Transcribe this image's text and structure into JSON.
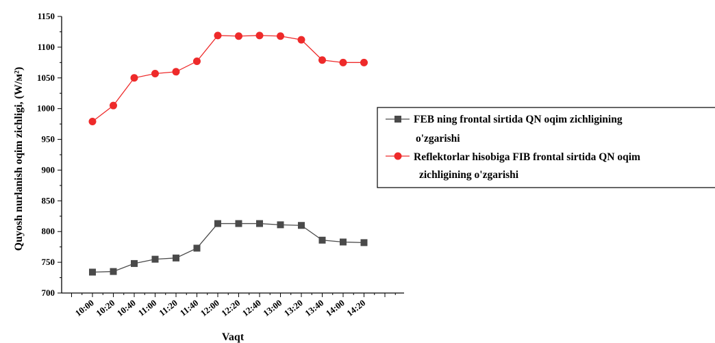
{
  "chart_data": {
    "type": "line",
    "xlabel": "Vaqt",
    "ylabel": "Quyosh nurlanish oqim zichligi, (W/м²)",
    "ylim": [
      700,
      1150
    ],
    "yticks": [
      "700",
      "750",
      "800",
      "850",
      "900",
      "950",
      "1000",
      "1050",
      "1100",
      "1150"
    ],
    "categories": [
      "10:00",
      "10:20",
      "10:40",
      "11:00",
      "11:20",
      "11:40",
      "12:00",
      "12:20",
      "12:40",
      "13:00",
      "13:20",
      "13:40",
      "14:00",
      "14:20"
    ],
    "series": [
      {
        "name_line1": "FEB ning frontal sirtida QN oqim zichligining",
        "name_line2": "o'zgarishi",
        "color": "#4a4a4a",
        "marker": "square",
        "values": [
          734,
          735,
          748,
          755,
          757,
          773,
          813,
          813,
          813,
          811,
          810,
          786,
          783,
          782
        ]
      },
      {
        "name_line1": "Reflektorlar hisobiga FIB frontal sirtida QN oqim",
        "name_line2": "zichligining o'zgarishi",
        "color": "#ee2a2a",
        "marker": "circle",
        "values": [
          979,
          1005,
          1050,
          1057,
          1060,
          1077,
          1119,
          1118,
          1119,
          1118,
          1112,
          1079,
          1075,
          1075
        ]
      }
    ],
    "grid": false,
    "legend_position": "right"
  }
}
